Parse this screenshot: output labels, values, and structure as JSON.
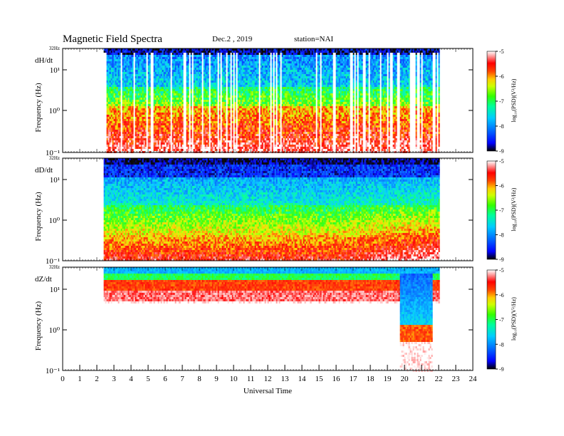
{
  "header": {
    "title": "Magnetic  Field  Spectra",
    "date": "Dec.2  , 2019",
    "station": "station=NAI"
  },
  "chart_data": [
    {
      "type": "heatmap",
      "panel_label": "dH/dt",
      "ylabel": "Frequency  (Hz)",
      "y_scale": "log",
      "ylim": [
        0.1,
        32
      ],
      "y_ticks": [
        "10¹",
        "10⁰",
        "10⁻¹"
      ],
      "top_label": "32Hz",
      "x_range": [
        0,
        24
      ],
      "data_coverage_ut": [
        2.4,
        22.0
      ],
      "colorbar": {
        "label": "log₁₀(PSD)(V²/Hz)",
        "ticks": [
          "-5",
          "-6",
          "-7",
          "-8",
          "-9"
        ],
        "range": [
          -9,
          -5
        ]
      },
      "description_of_pattern": "high power below 1 Hz with frequent vertical data gaps"
    },
    {
      "type": "heatmap",
      "panel_label": "dD/dt",
      "ylabel": "Frequency  (Hz)",
      "y_scale": "log",
      "ylim": [
        0.1,
        32
      ],
      "y_ticks": [
        "10¹",
        "10⁰",
        "10⁻¹"
      ],
      "top_label": "32Hz",
      "x_range": [
        0,
        24
      ],
      "data_coverage_ut": [
        2.4,
        22.0
      ],
      "colorbar": {
        "label": "log₁₀(PSD)(V²/Hz)",
        "ticks": [
          "-5",
          "-6",
          "-7",
          "-8",
          "-9"
        ],
        "range": [
          -9,
          -5
        ]
      }
    },
    {
      "type": "heatmap",
      "panel_label": "dZ/dt",
      "ylabel": "Frequency  (Hz)",
      "y_scale": "log",
      "ylim": [
        0.1,
        32
      ],
      "y_ticks": [
        "10¹",
        "10⁰",
        "10⁻¹"
      ],
      "top_label": "32Hz",
      "x_range": [
        0,
        24
      ],
      "x_ticks": [
        "0",
        "1",
        "2",
        "3",
        "4",
        "5",
        "6",
        "7",
        "8",
        "9",
        "10",
        "11",
        "12",
        "13",
        "14",
        "15",
        "16",
        "17",
        "18",
        "19",
        "20",
        "21",
        "22",
        "23",
        "24"
      ],
      "xlabel": "Universal  Time",
      "data_coverage_ut": [
        2.4,
        22.0
      ],
      "colorbar": {
        "label": "log₁₀(PSD)(V²/Hz)",
        "ticks": [
          "-5",
          "-6",
          "-7",
          "-8",
          "-9"
        ],
        "range": [
          -9,
          -5
        ]
      }
    }
  ]
}
